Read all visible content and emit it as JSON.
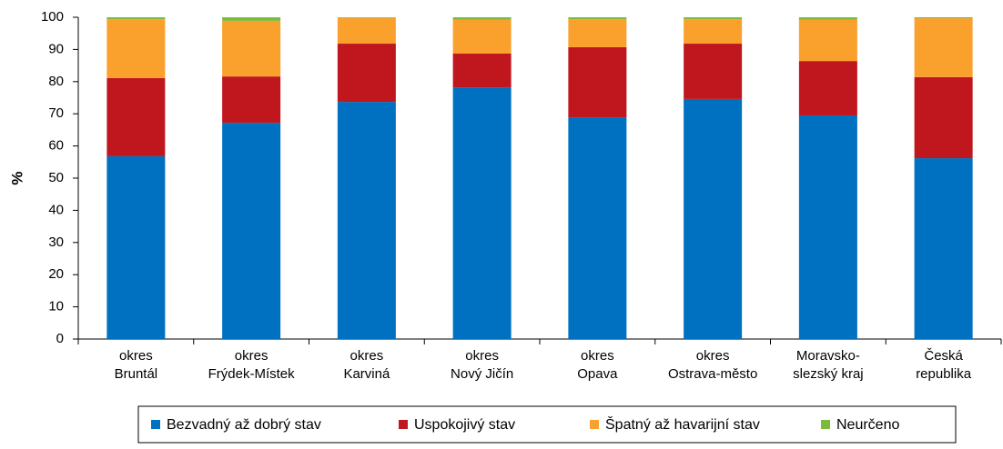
{
  "chart_data": {
    "type": "stacked_bar",
    "ylabel": "%",
    "categories": [
      [
        "okres",
        "Bruntál"
      ],
      [
        "okres",
        "Frýdek-Místek"
      ],
      [
        "okres",
        "Karviná"
      ],
      [
        "okres",
        "Nový Jičín"
      ],
      [
        "okres",
        "Opava"
      ],
      [
        "okres",
        "Ostrava-město"
      ],
      [
        "Moravsko-",
        "slezský kraj"
      ],
      [
        "Česká",
        "republika"
      ]
    ],
    "series": [
      {
        "name": "Bezvadný až dobrý stav",
        "color": "#0070c0",
        "values": [
          56.8,
          67.2,
          73.7,
          78.2,
          68.9,
          74.6,
          69.5,
          56.2
        ]
      },
      {
        "name": "Uspokojivý stav",
        "color": "#c0171f",
        "values": [
          24.3,
          14.4,
          18.1,
          10.5,
          21.8,
          17.2,
          16.9,
          25.2
        ]
      },
      {
        "name": "Špatný až havarijní stav",
        "color": "#f9a12c",
        "values": [
          18.3,
          17.3,
          8.0,
          10.5,
          8.7,
          7.6,
          12.8,
          18.3
        ]
      },
      {
        "name": "Neurčeno",
        "color": "#7bbd3a",
        "values": [
          0.6,
          1.1,
          0.2,
          0.8,
          0.6,
          0.6,
          0.8,
          0.3
        ]
      }
    ],
    "ylim": [
      0,
      100
    ],
    "yticks": [
      0,
      10,
      20,
      30,
      40,
      50,
      60,
      70,
      80,
      90,
      100
    ],
    "legend": "bottom"
  }
}
